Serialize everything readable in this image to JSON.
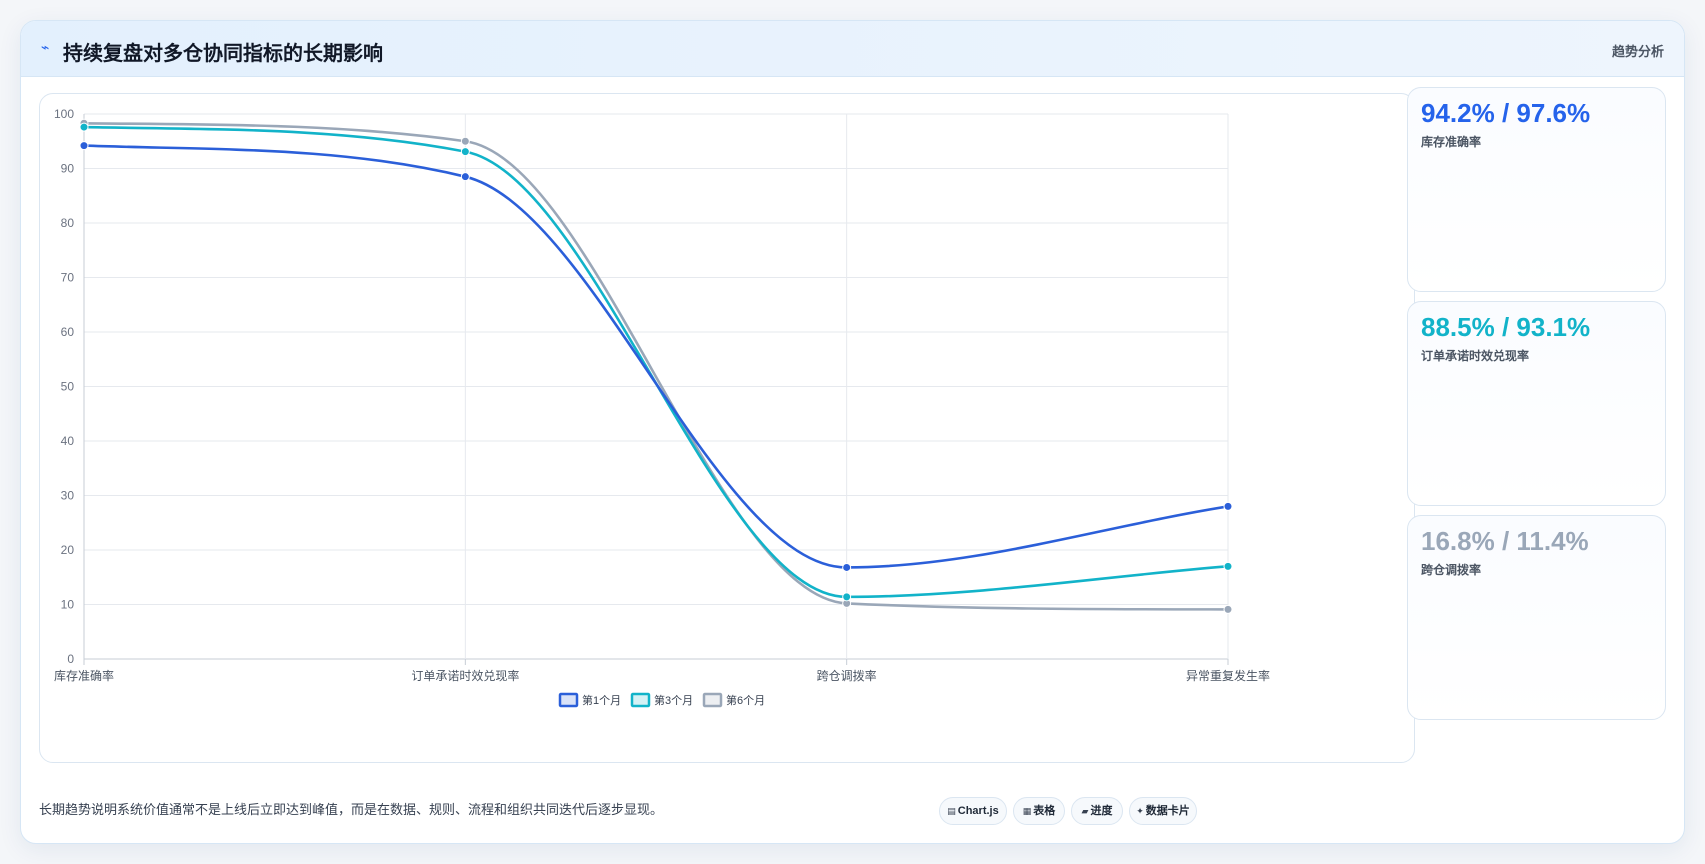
{
  "header": {
    "title_icon": "trend-line-icon",
    "title": "持续复盘对多仓协同指标的长期影响",
    "right_label": "趋势分析"
  },
  "chart_data": {
    "type": "line",
    "title": "",
    "xlabel": "",
    "ylabel": "",
    "categories": [
      "库存准确率",
      "订单承诺时效兑现率",
      "跨仓调拨率",
      "异常重复发生率"
    ],
    "series": [
      {
        "name": "第1个月",
        "values": [
          94.2,
          88.5,
          16.8,
          28.0
        ],
        "color": "#2b5fd9"
      },
      {
        "name": "第3个月",
        "values": [
          97.6,
          93.1,
          11.4,
          17.0
        ],
        "color": "#12b3c9"
      },
      {
        "name": "第6个月",
        "values": [
          98.3,
          95.0,
          10.2,
          9.1
        ],
        "color": "#9aa7b8"
      }
    ],
    "ylim": [
      0,
      100
    ],
    "yticks": [
      0,
      10,
      20,
      30,
      40,
      50,
      60,
      70,
      80,
      90,
      100
    ],
    "smooth": true,
    "grid": true,
    "legend_position": "bottom-center"
  },
  "kpis": [
    {
      "value": "94.2% / 97.6%",
      "label": "库存准确率",
      "color": "#2563eb"
    },
    {
      "value": "88.5% / 93.1%",
      "label": "订单承诺时效兑现率",
      "color": "#12b3c9"
    },
    {
      "value": "16.8% / 11.4%",
      "label": "跨仓调拨率",
      "color": "#9aa7b8"
    }
  ],
  "footer": {
    "note": "长期趋势说明系统价值通常不是上线后立即达到峰值，而是在数据、规则、流程和组织共同迭代后逐步显现。",
    "chips": [
      {
        "icon": "▤",
        "icon_name": "chart-icon",
        "label": "Chart.js"
      },
      {
        "icon": "▦",
        "icon_name": "table-icon",
        "label": "表格"
      },
      {
        "icon": "▰",
        "icon_name": "progress-icon",
        "label": "进度"
      },
      {
        "icon": "✦",
        "icon_name": "sparkle-icon",
        "label": "数据卡片"
      }
    ]
  }
}
